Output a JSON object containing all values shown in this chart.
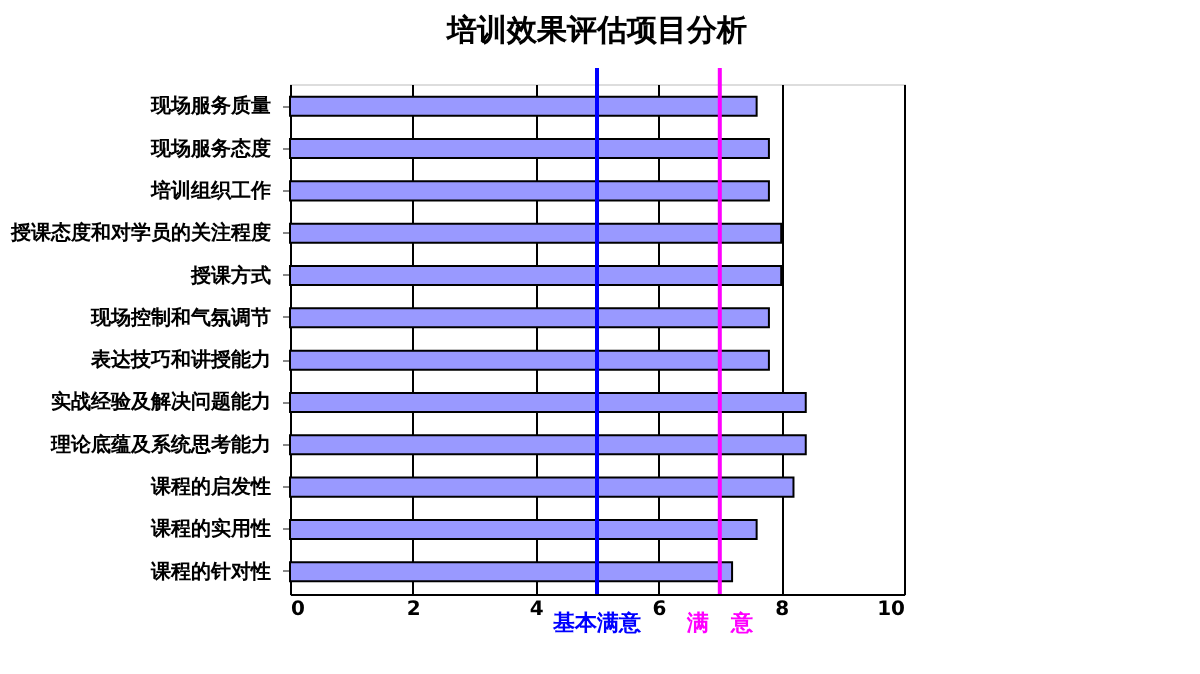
{
  "chart_data": {
    "type": "bar",
    "orientation": "horizontal",
    "title": "培训效果评估项目分析",
    "categories": [
      "现场服务质量",
      "现场服务态度",
      "培训组织工作",
      "授课态度和对学员的关注程度",
      "授课方式",
      "现场控制和气氛调节",
      "表达技巧和讲授能力",
      "实战经验及解决问题能力",
      "理论底蕴及系统思考能力",
      "课程的启发性",
      "课程的实用性",
      "课程的针对性"
    ],
    "values": [
      7.6,
      7.8,
      7.8,
      8.0,
      8.0,
      7.8,
      7.8,
      8.4,
      8.4,
      8.2,
      7.6,
      7.2
    ],
    "color": "#9999ff",
    "xlim": [
      0,
      10
    ],
    "xticks": [
      0,
      2,
      4,
      6,
      8,
      10
    ],
    "grid": "x",
    "ref_lines": [
      {
        "axis": "x",
        "value": 5,
        "label": "基本满意",
        "color": "#0000ff"
      },
      {
        "axis": "x",
        "value": 7,
        "label": "满　意",
        "color": "#ff00ff"
      }
    ]
  }
}
